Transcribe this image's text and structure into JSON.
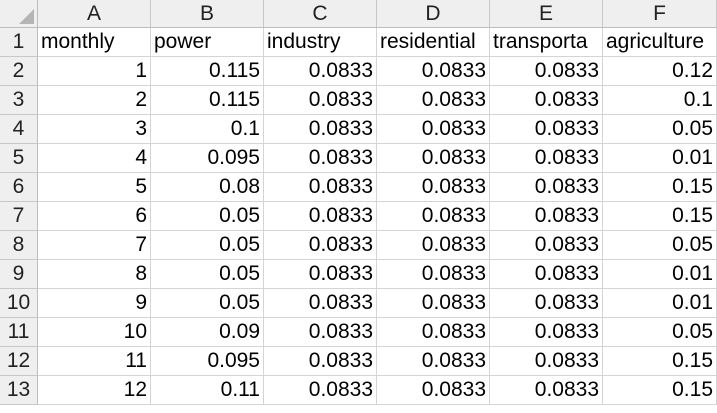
{
  "spreadsheet": {
    "column_headers": [
      "A",
      "B",
      "C",
      "D",
      "E",
      "F"
    ],
    "row_headers": [
      "1",
      "2",
      "3",
      "4",
      "5",
      "6",
      "7",
      "8",
      "9",
      "10",
      "11",
      "12",
      "13"
    ],
    "rows": [
      [
        "monthly",
        "power",
        "industry",
        "residential",
        "transporta",
        "agriculture"
      ],
      [
        "1",
        "0.115",
        "0.0833",
        "0.0833",
        "0.0833",
        "0.12"
      ],
      [
        "2",
        "0.115",
        "0.0833",
        "0.0833",
        "0.0833",
        "0.1"
      ],
      [
        "3",
        "0.1",
        "0.0833",
        "0.0833",
        "0.0833",
        "0.05"
      ],
      [
        "4",
        "0.095",
        "0.0833",
        "0.0833",
        "0.0833",
        "0.01"
      ],
      [
        "5",
        "0.08",
        "0.0833",
        "0.0833",
        "0.0833",
        "0.15"
      ],
      [
        "6",
        "0.05",
        "0.0833",
        "0.0833",
        "0.0833",
        "0.15"
      ],
      [
        "7",
        "0.05",
        "0.0833",
        "0.0833",
        "0.0833",
        "0.05"
      ],
      [
        "8",
        "0.05",
        "0.0833",
        "0.0833",
        "0.0833",
        "0.01"
      ],
      [
        "9",
        "0.05",
        "0.0833",
        "0.0833",
        "0.0833",
        "0.01"
      ],
      [
        "10",
        "0.09",
        "0.0833",
        "0.0833",
        "0.0833",
        "0.05"
      ],
      [
        "11",
        "0.095",
        "0.0833",
        "0.0833",
        "0.0833",
        "0.15"
      ],
      [
        "12",
        "0.11",
        "0.0833",
        "0.0833",
        "0.0833",
        "0.15"
      ]
    ]
  }
}
